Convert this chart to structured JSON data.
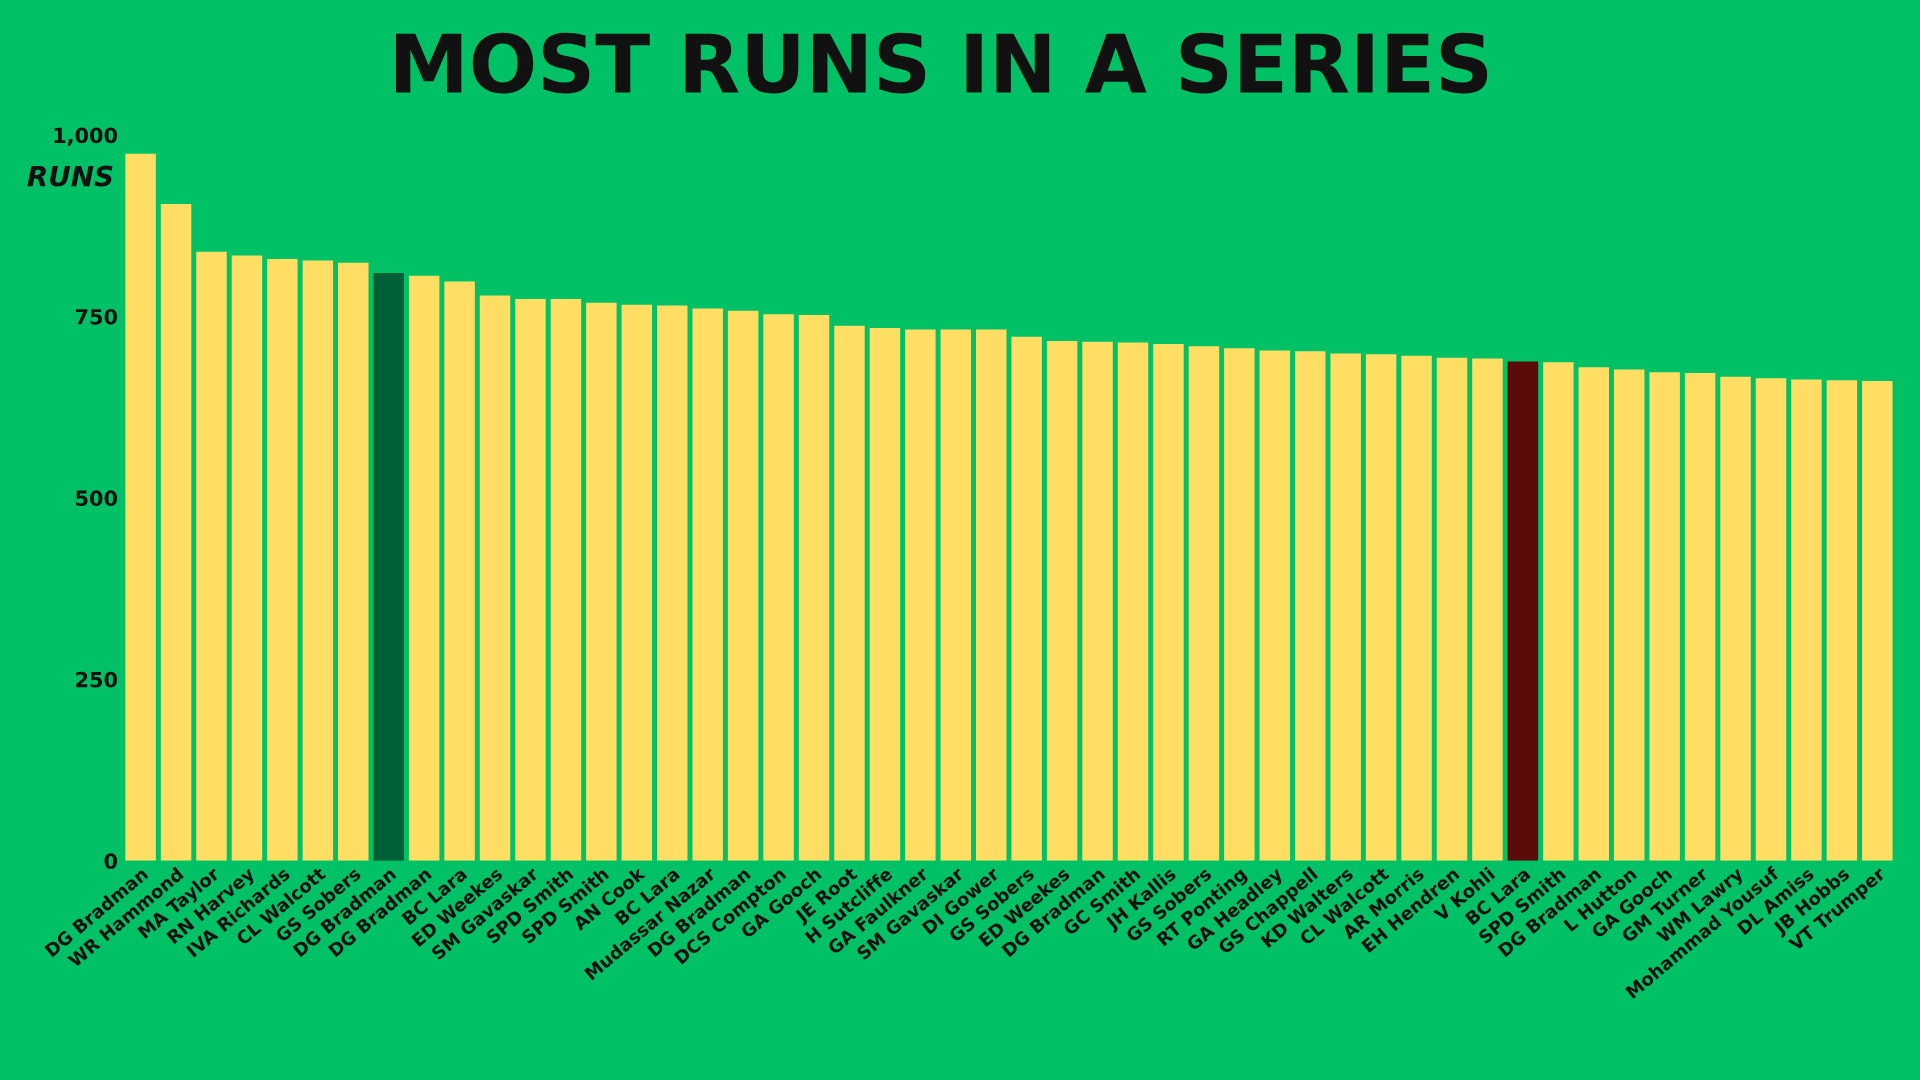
{
  "chart_data": {
    "type": "bar",
    "title": "MOST RUNS IN A SERIES",
    "ylabel": "RUNS",
    "categories": [
      "DG Bradman",
      "WR Hammond",
      "MA Taylor",
      "RN Harvey",
      "IVA Richards",
      "CL Walcott",
      "GS Sobers",
      "DG Bradman",
      "DG Bradman",
      "BC Lara",
      "ED Weekes",
      "SM Gavaskar",
      "SPD Smith",
      "SPD Smith",
      "AN Cook",
      "BC Lara",
      "Mudassar Nazar",
      "DG Bradman",
      "DCS Compton",
      "GA Gooch",
      "JE Root",
      "H Sutcliffe",
      "GA Faulkner",
      "SM Gavaskar",
      "DI Gower",
      "GS Sobers",
      "ED Weekes",
      "DG Bradman",
      "GC Smith",
      "JH Kallis",
      "GS Sobers",
      "RT Ponting",
      "GA Headley",
      "GS Chappell",
      "KD Walters",
      "CL Walcott",
      "AR Morris",
      "EH Hendren",
      "V Kohli",
      "BC Lara",
      "SPD Smith",
      "DG Bradman",
      "L Hutton",
      "GA Gooch",
      "GM Turner",
      "WM Lawry",
      "Mohammad Yousuf",
      "DL Amiss",
      "JB Hobbs",
      "VT Trumper"
    ],
    "values": [
      974,
      905,
      839,
      834,
      829,
      827,
      824,
      810,
      806,
      798,
      779,
      774,
      774,
      769,
      766,
      765,
      761,
      758,
      753,
      752,
      737,
      734,
      732,
      732,
      732,
      722,
      716,
      715,
      714,
      712,
      709,
      706,
      703,
      702,
      699,
      698,
      696,
      693,
      692,
      688,
      687,
      680,
      677,
      673,
      672,
      667,
      665,
      663,
      662,
      661
    ],
    "colors": [
      "#ffde63",
      "#ffde63",
      "#ffde63",
      "#ffde63",
      "#ffde63",
      "#ffde63",
      "#ffde63",
      "#005f36",
      "#ffde63",
      "#ffde63",
      "#ffde63",
      "#ffde63",
      "#ffde63",
      "#ffde63",
      "#ffde63",
      "#ffde63",
      "#ffde63",
      "#ffde63",
      "#ffde63",
      "#ffde63",
      "#ffde63",
      "#ffde63",
      "#ffde63",
      "#ffde63",
      "#ffde63",
      "#ffde63",
      "#ffde63",
      "#ffde63",
      "#ffde63",
      "#ffde63",
      "#ffde63",
      "#ffde63",
      "#ffde63",
      "#ffde63",
      "#ffde63",
      "#ffde63",
      "#ffde63",
      "#ffde63",
      "#ffde63",
      "#5c0a0a",
      "#ffde63",
      "#ffde63",
      "#ffde63",
      "#ffde63",
      "#ffde63",
      "#ffde63",
      "#ffde63",
      "#ffde63",
      "#ffde63",
      "#ffde63"
    ],
    "ylim": [
      0,
      1000
    ],
    "yticks": [
      0,
      250,
      500,
      750,
      {
        "value": 1000,
        "label": "1,000"
      }
    ],
    "grid": false,
    "legend": false
  }
}
